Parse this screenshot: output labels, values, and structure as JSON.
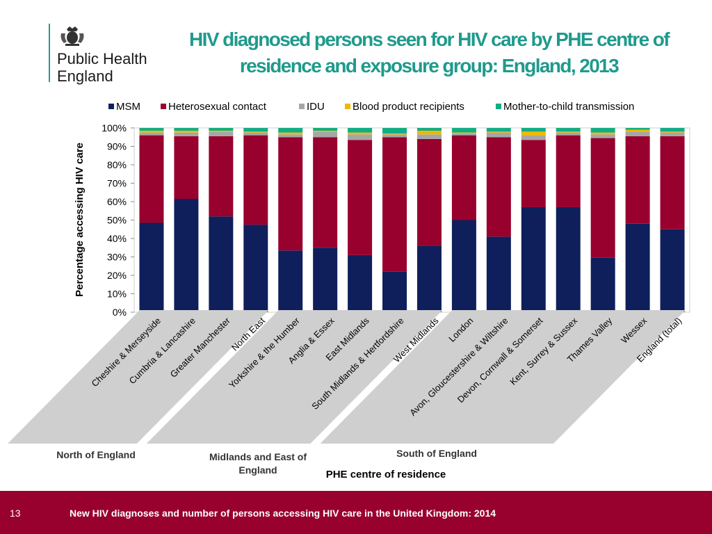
{
  "logo": {
    "line1": "Public Health",
    "line2": "England",
    "crest_icon": "royal-crest-icon"
  },
  "title": "HIV diagnosed persons seen for HIV care by PHE centre of residence and exposure group: England, 2013",
  "footer": {
    "page_number": "13",
    "text": "New HIV diagnoses and number of persons accessing HIV care in the United Kingdom: 2014",
    "background": "#98002e"
  },
  "chart_data": {
    "type": "bar",
    "stacked": true,
    "ylabel": "Percentage accessing HIV care",
    "xlabel": "PHE centre of residence",
    "ylim": [
      0,
      100
    ],
    "yticks": [
      "0%",
      "10%",
      "20%",
      "30%",
      "40%",
      "50%",
      "60%",
      "70%",
      "80%",
      "90%",
      "100%"
    ],
    "legend_position": "top",
    "categories": [
      "Cheshire & Merseyside",
      "Cumbria & Lancashire",
      "Greater Manchester",
      "North East",
      "Yorkshire & the Humber",
      "Anglia & Essex",
      "East Midlands",
      "South Midlands & Hertfordshire",
      "West Midlands",
      "London",
      "Avon, Gloucestershire & Wiltshire",
      "Devon, Cornwall & Somerset",
      "Kent, Surrey & Sussex",
      "Thames Valley",
      "Wessex",
      "England (total)"
    ],
    "series": [
      {
        "name": "MSM",
        "color": "#0e1f5b",
        "values": [
          48.5,
          61.5,
          52,
          47.5,
          33.5,
          35,
          31,
          22,
          36,
          50,
          41,
          57,
          57,
          29.5,
          48,
          45
        ]
      },
      {
        "name": "Heterosexual contact",
        "color": "#98002e",
        "values": [
          47.5,
          34,
          43.5,
          48.5,
          61.5,
          60,
          62.5,
          73,
          58,
          46,
          54,
          36.5,
          39,
          65,
          47.5,
          50.5
        ]
      },
      {
        "name": "IDU",
        "color": "#a6a6a6",
        "values": [
          1.5,
          2,
          2.5,
          1.5,
          1.5,
          3,
          3,
          1.5,
          2.5,
          1,
          2.5,
          2.5,
          1.5,
          2,
          2.5,
          2
        ]
      },
      {
        "name": "Blood product recipients",
        "color": "#f2b800",
        "values": [
          1,
          1,
          0.5,
          0.5,
          1,
          0.5,
          1,
          0.5,
          2,
          0.5,
          0.5,
          2,
          0.5,
          1,
          1,
          0.5
        ]
      },
      {
        "name": "Mother-to-child transmission",
        "color": "#13ad84",
        "values": [
          1.5,
          1.5,
          1.5,
          2,
          2.5,
          1.5,
          2.5,
          3,
          1.5,
          2.5,
          2,
          2,
          2,
          2.5,
          1,
          2
        ]
      }
    ],
    "groups": [
      {
        "name": "North of England",
        "start": 0,
        "end": 3
      },
      {
        "name": "Midlands and East of England",
        "start": 4,
        "end": 8
      },
      {
        "name": "South of England",
        "start": 9,
        "end": 15
      }
    ]
  }
}
